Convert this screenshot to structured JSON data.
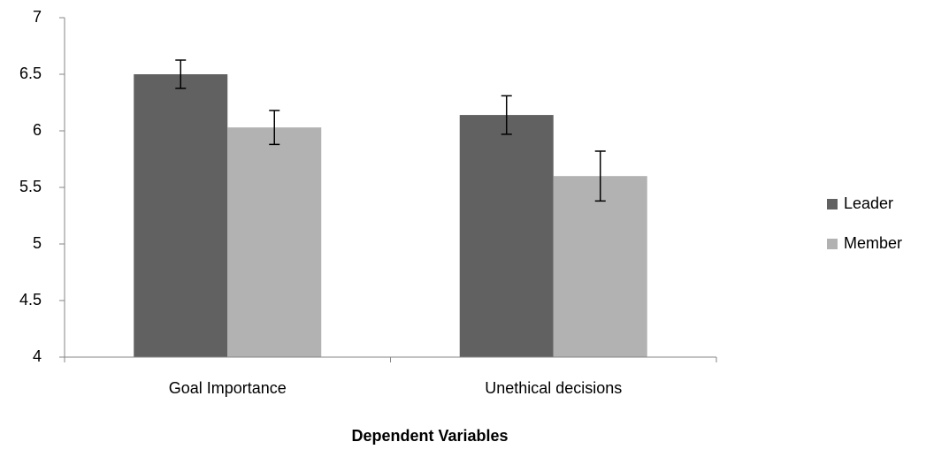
{
  "chart_data": {
    "type": "bar",
    "x_label": "Dependent Variables",
    "categories": [
      "Goal Importance",
      "Unethical decisions"
    ],
    "series": [
      {
        "name": "Leader",
        "color": "#616161",
        "values": [
          6.5,
          6.14
        ],
        "errors": [
          0.125,
          0.17
        ]
      },
      {
        "name": "Member",
        "color": "#b2b2b2",
        "values": [
          6.03,
          5.6
        ],
        "errors": [
          0.15,
          0.22
        ]
      }
    ],
    "ylim": [
      4,
      7
    ],
    "yticks": [
      4,
      4.5,
      5,
      5.5,
      6,
      6.5,
      7
    ],
    "grid": false,
    "legend": "right"
  }
}
